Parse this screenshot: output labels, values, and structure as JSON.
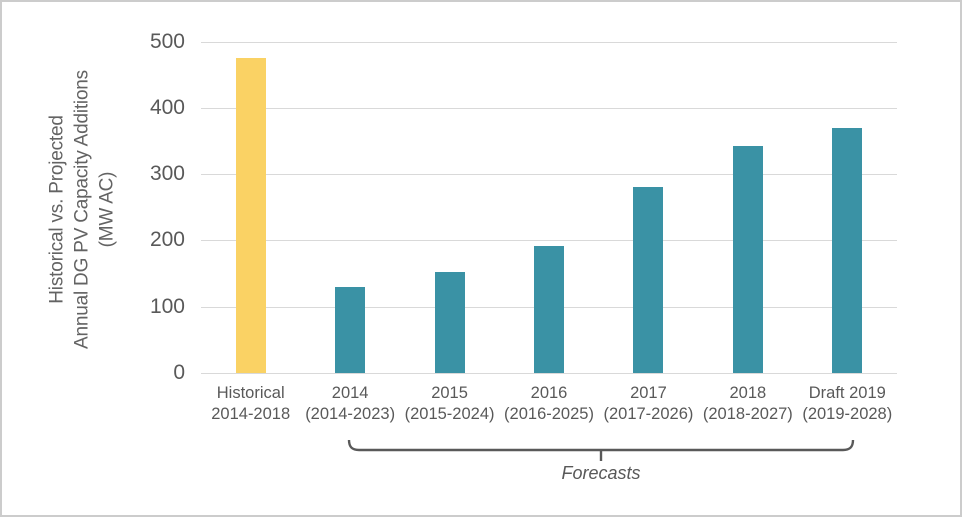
{
  "chart_data": {
    "type": "bar",
    "title": "",
    "ylabel_lines": [
      "Historical vs. Projected",
      "Annual DG PV Capacity Additions",
      "(MW AC)"
    ],
    "y_ticks": [
      0,
      100,
      200,
      300,
      400,
      500
    ],
    "ylim": [
      0,
      500
    ],
    "grid": "horizontal",
    "legend": "none",
    "categories": [
      {
        "line1": "Historical",
        "line2": "2014-2018",
        "value": 475,
        "series": "historical"
      },
      {
        "line1": "2014",
        "line2": "(2014-2023)",
        "value": 130,
        "series": "forecast"
      },
      {
        "line1": "2015",
        "line2": "(2015-2024)",
        "value": 152,
        "series": "forecast"
      },
      {
        "line1": "2016",
        "line2": "(2016-2025)",
        "value": 192,
        "series": "forecast"
      },
      {
        "line1": "2017",
        "line2": "(2017-2026)",
        "value": 280,
        "series": "forecast"
      },
      {
        "line1": "2018",
        "line2": "(2018-2027)",
        "value": 343,
        "series": "forecast"
      },
      {
        "line1": "Draft 2019",
        "line2": "(2019-2028)",
        "value": 370,
        "series": "forecast"
      }
    ],
    "annotation": {
      "label": "Forecasts",
      "applies_to": "2014 through Draft 2019 forecast bars"
    },
    "colors": {
      "historical_bar": "#FAD264",
      "forecast_bar": "#3A92A5",
      "text": "#595959",
      "gridline": "#D9D9D9",
      "frame_border": "#CCCCCC"
    }
  }
}
